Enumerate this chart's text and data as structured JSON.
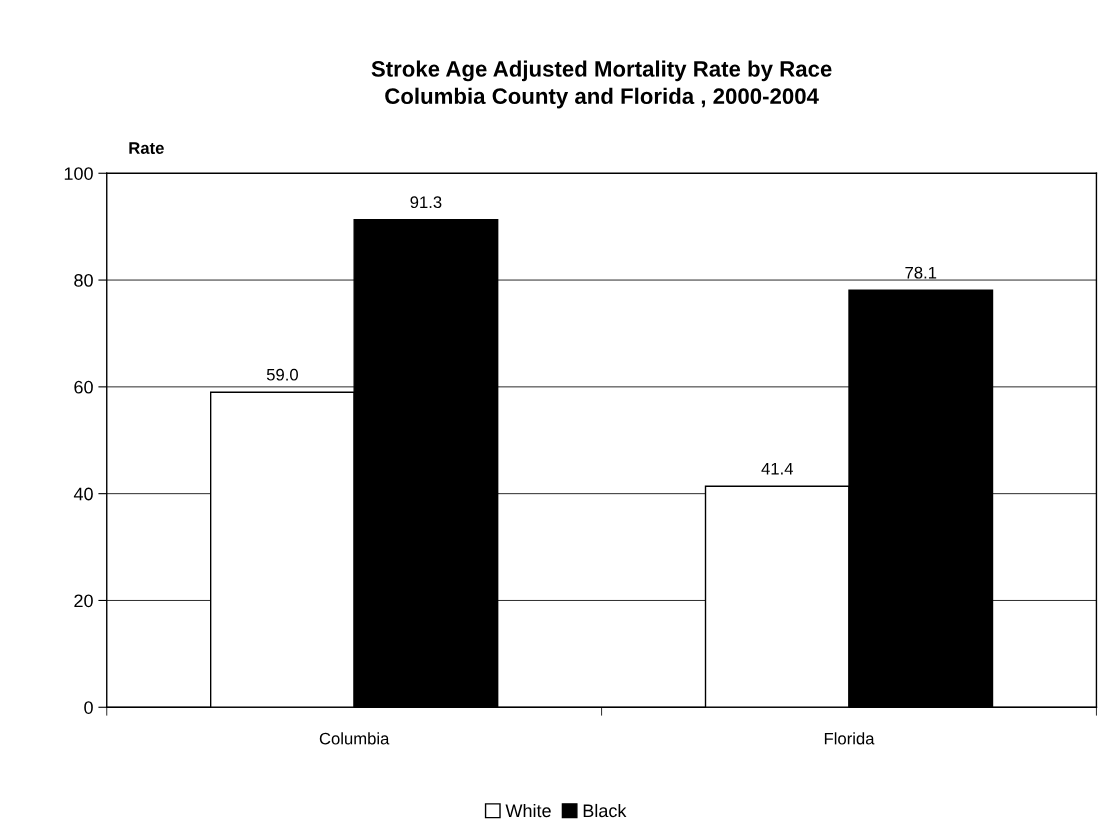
{
  "chart_data": {
    "type": "bar",
    "title": "Stroke Age Adjusted Mortality Rate by Race\nColumbia County and Florida , 2000-2004",
    "ylabel": "Rate",
    "categories": [
      "Columbia",
      "Florida"
    ],
    "series": [
      {
        "name": "White",
        "color": "#ffffff",
        "values": [
          59.0,
          41.4
        ],
        "value_labels": [
          "59.0",
          "41.4"
        ]
      },
      {
        "name": "Black",
        "color": "#000000",
        "values": [
          91.3,
          78.1
        ],
        "value_labels": [
          "91.3",
          "78.1"
        ]
      }
    ],
    "ylim": [
      0,
      100
    ],
    "yticks": [
      0,
      20,
      40,
      60,
      80,
      100
    ],
    "grid": "y",
    "legend": "bottom"
  }
}
